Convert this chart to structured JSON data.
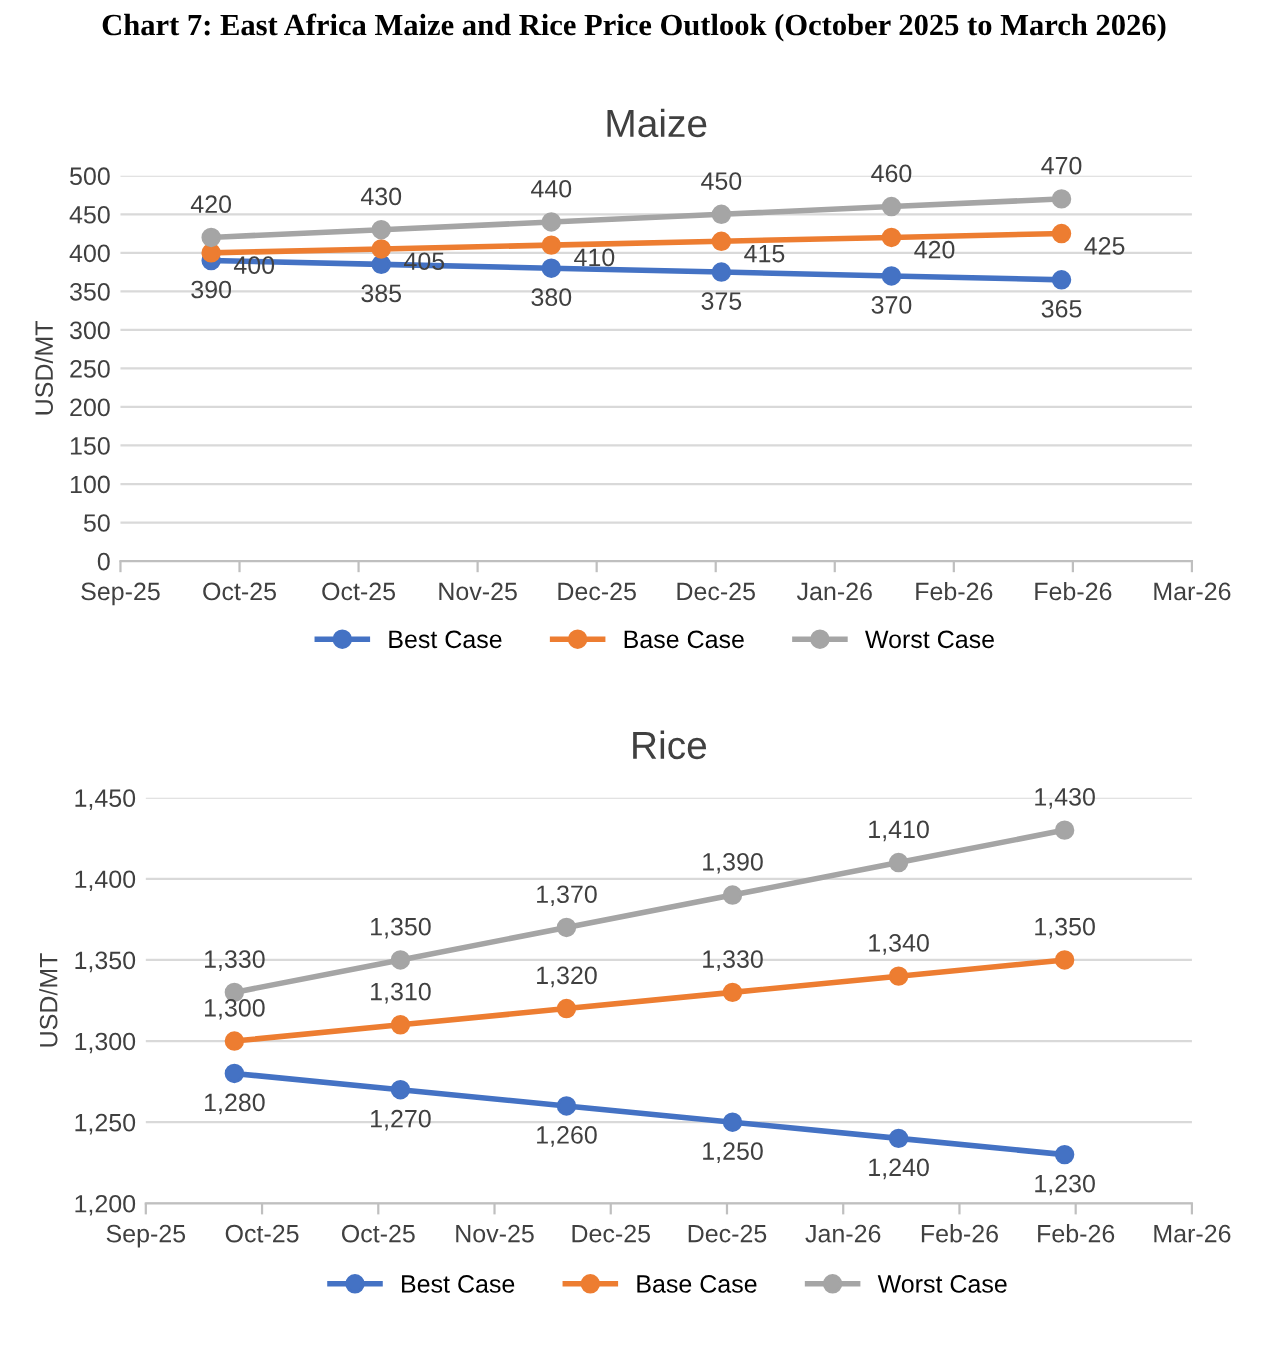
{
  "chart_data": [
    {
      "type": "line",
      "title": "Maize",
      "ylabel": "USD/MT",
      "annotations": [
        "Chart 7: East Africa Maize and Rice Price Outlook (October 2025 to March 2026)"
      ],
      "x": [
        "2025-09-28",
        "2025-10-28",
        "2025-11-27",
        "2025-12-27",
        "2026-01-26",
        "2026-02-25"
      ],
      "series": [
        {
          "name": "Best Case",
          "color": "#4472c4",
          "values": [
            390,
            385,
            380,
            375,
            370,
            365
          ]
        },
        {
          "name": "Base Case",
          "color": "#ed7d31",
          "values": [
            400,
            405,
            410,
            415,
            420,
            425
          ]
        },
        {
          "name": "Worst Case",
          "color": "#a5a5a5",
          "values": [
            420,
            430,
            440,
            450,
            460,
            470
          ]
        }
      ],
      "xlim": [
        "2025-09-12",
        "2026-03-20"
      ],
      "xticks": [
        {
          "value": "2025-09-12",
          "label": "Sep-25"
        },
        {
          "value": "2025-10-03",
          "label": "Oct-25"
        },
        {
          "value": "2025-10-24",
          "label": "Oct-25"
        },
        {
          "value": "2025-11-14",
          "label": "Nov-25"
        },
        {
          "value": "2025-12-05",
          "label": "Dec-25"
        },
        {
          "value": "2025-12-26",
          "label": "Dec-25"
        },
        {
          "value": "2026-01-16",
          "label": "Jan-26"
        },
        {
          "value": "2026-02-06",
          "label": "Feb-26"
        },
        {
          "value": "2026-02-27",
          "label": "Feb-26"
        },
        {
          "value": "2026-03-20",
          "label": "Mar-26"
        }
      ],
      "ylim": [
        0,
        500
      ],
      "yticks": [
        0,
        50,
        100,
        150,
        200,
        250,
        300,
        350,
        400,
        450,
        500
      ],
      "grid": "y",
      "legend": "bottom",
      "marker": "circle",
      "line_style": "solid",
      "data_labels": true
    },
    {
      "type": "line",
      "title": "Rice",
      "ylabel": "USD/MT",
      "x": [
        "2025-09-28",
        "2025-10-28",
        "2025-11-27",
        "2025-12-27",
        "2026-01-26",
        "2026-02-25"
      ],
      "series": [
        {
          "name": "Best Case",
          "color": "#4472c4",
          "values": [
            1280,
            1270,
            1260,
            1250,
            1240,
            1230
          ],
          "value_labels": [
            "1,280",
            "1,270",
            "1,260",
            "1,250",
            "1,240",
            "1,230"
          ]
        },
        {
          "name": "Base Case",
          "color": "#ed7d31",
          "values": [
            1300,
            1310,
            1320,
            1330,
            1340,
            1350
          ],
          "value_labels": [
            "1,300",
            "1,310",
            "1,320",
            "1,330",
            "1,340",
            "1,350"
          ]
        },
        {
          "name": "Worst Case",
          "color": "#a5a5a5",
          "values": [
            1330,
            1350,
            1370,
            1390,
            1410,
            1430
          ],
          "value_labels": [
            "1,330",
            "1,350",
            "1,370",
            "1,390",
            "1,410",
            "1,430"
          ]
        }
      ],
      "xlim": [
        "2025-09-12",
        "2026-03-20"
      ],
      "xticks": [
        {
          "value": "2025-09-12",
          "label": "Sep-25"
        },
        {
          "value": "2025-10-03",
          "label": "Oct-25"
        },
        {
          "value": "2025-10-24",
          "label": "Oct-25"
        },
        {
          "value": "2025-11-14",
          "label": "Nov-25"
        },
        {
          "value": "2025-12-05",
          "label": "Dec-25"
        },
        {
          "value": "2025-12-26",
          "label": "Dec-25"
        },
        {
          "value": "2026-01-16",
          "label": "Jan-26"
        },
        {
          "value": "2026-02-06",
          "label": "Feb-26"
        },
        {
          "value": "2026-02-27",
          "label": "Feb-26"
        },
        {
          "value": "2026-03-20",
          "label": "Mar-26"
        }
      ],
      "ylim": [
        1200,
        1450
      ],
      "yticks": [
        {
          "value": 1200,
          "label": "1,200"
        },
        {
          "value": 1250,
          "label": "1,250"
        },
        {
          "value": 1300,
          "label": "1,300"
        },
        {
          "value": 1350,
          "label": "1,350"
        },
        {
          "value": 1400,
          "label": "1,400"
        },
        {
          "value": 1450,
          "label": "1,450"
        }
      ],
      "grid": "y",
      "legend": "bottom",
      "marker": "circle",
      "line_style": "solid"
    }
  ]
}
